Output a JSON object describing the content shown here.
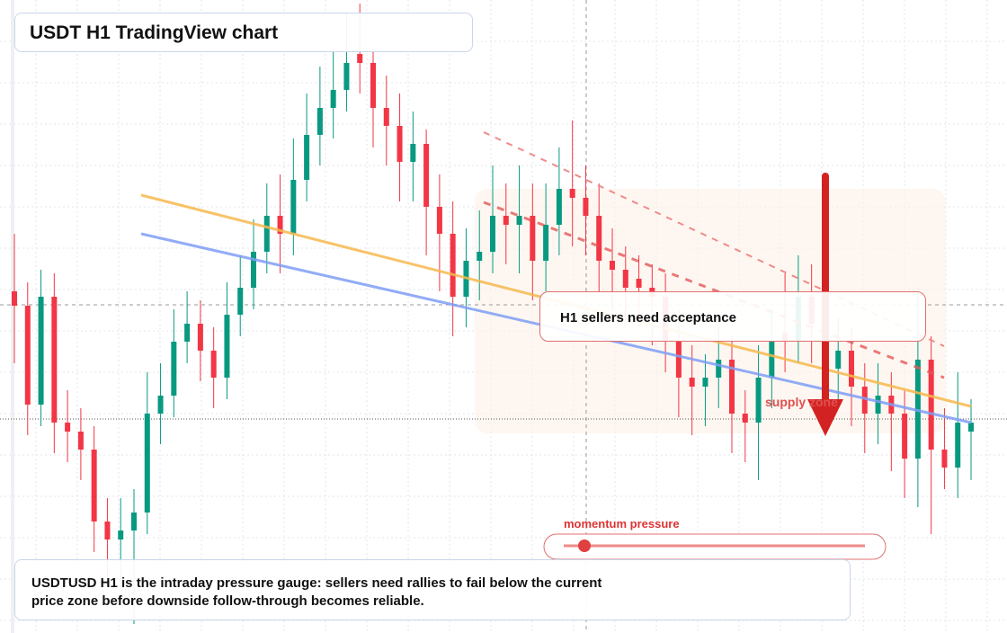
{
  "chart_data": {
    "type": "candlestick",
    "title": "USDT H1 TradingView chart",
    "annotations": {
      "callout": "H1 sellers need acceptance",
      "zone": "supply zone",
      "gauge": "momentum pressure",
      "note": "USDTUSD H1 is the intraday pressure gauge: sellers need rallies to fail below the current price zone before downside follow-through becomes reliable."
    },
    "ylim": [
      0,
      704
    ],
    "up_color": "#089981",
    "down_color": "#f23645",
    "open": [
      380,
      364,
      254,
      374,
      234,
      224,
      204,
      124,
      104,
      114,
      134,
      244,
      264,
      324,
      344,
      314,
      284,
      354,
      384,
      424,
      464,
      444,
      504,
      554,
      584,
      604,
      644,
      634,
      584,
      564,
      524,
      544,
      474,
      444,
      374,
      414,
      424,
      464,
      454,
      464,
      414,
      454,
      494,
      484,
      464,
      414,
      404,
      394,
      384,
      374,
      324,
      284,
      274,
      284,
      304,
      244,
      234,
      284,
      334,
      324,
      374,
      344,
      294,
      314,
      274,
      244,
      264,
      244,
      194,
      304,
      204,
      184,
      224
    ],
    "high": [
      444,
      390,
      404,
      400,
      270,
      250,
      230,
      150,
      150,
      160,
      290,
      300,
      360,
      380,
      370,
      340,
      390,
      420,
      460,
      500,
      510,
      550,
      600,
      630,
      650,
      690,
      700,
      650,
      620,
      600,
      580,
      560,
      510,
      480,
      450,
      470,
      520,
      500,
      520,
      500,
      500,
      540,
      570,
      520,
      500,
      450,
      430,
      420,
      410,
      400,
      360,
      320,
      310,
      340,
      330,
      270,
      320,
      360,
      400,
      420,
      410,
      380,
      350,
      340,
      300,
      300,
      290,
      270,
      380,
      330,
      250,
      290,
      260
    ],
    "low": [
      300,
      220,
      230,
      200,
      190,
      170,
      90,
      60,
      50,
      10,
      110,
      210,
      240,
      300,
      280,
      250,
      260,
      330,
      360,
      400,
      400,
      420,
      480,
      520,
      550,
      580,
      600,
      540,
      520,
      480,
      480,
      420,
      380,
      330,
      340,
      370,
      400,
      410,
      400,
      370,
      380,
      420,
      430,
      420,
      380,
      360,
      340,
      340,
      320,
      290,
      240,
      220,
      230,
      250,
      200,
      190,
      170,
      250,
      290,
      300,
      300,
      260,
      250,
      230,
      200,
      210,
      180,
      150,
      140,
      110,
      160,
      150,
      170
    ],
    "close": [
      364,
      254,
      374,
      234,
      224,
      204,
      124,
      104,
      114,
      134,
      244,
      264,
      324,
      344,
      314,
      284,
      354,
      384,
      424,
      464,
      444,
      504,
      554,
      584,
      604,
      634,
      634,
      584,
      564,
      524,
      544,
      474,
      444,
      374,
      414,
      424,
      464,
      454,
      464,
      414,
      454,
      494,
      484,
      464,
      414,
      404,
      384,
      384,
      374,
      324,
      284,
      274,
      284,
      304,
      244,
      234,
      284,
      324,
      324,
      374,
      344,
      294,
      314,
      274,
      244,
      264,
      244,
      194,
      304,
      204,
      184,
      234,
      234
    ]
  }
}
